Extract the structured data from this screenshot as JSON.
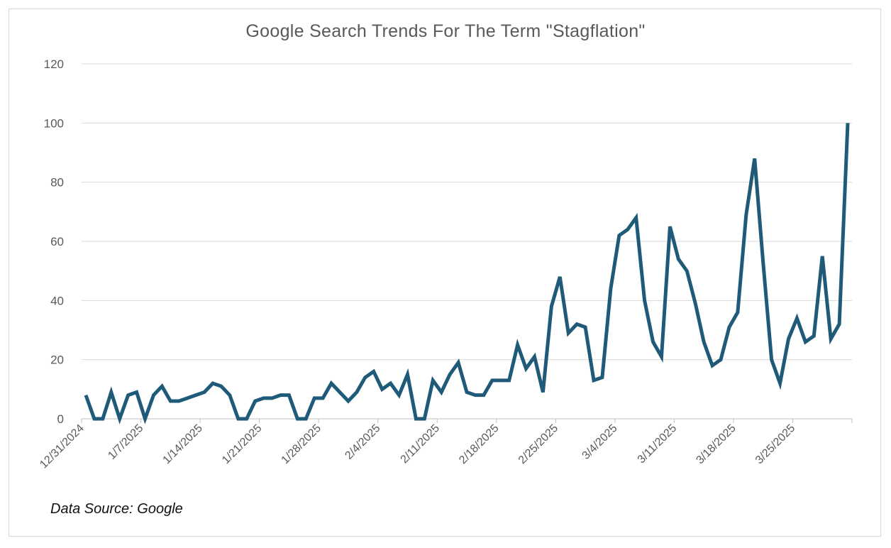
{
  "chart_data": {
    "type": "line",
    "title": "Google Search Trends For The Term \"Stagflation\"",
    "source_note": "Data Source:  Google",
    "xlabel": "",
    "ylabel": "",
    "ylim": [
      0,
      120
    ],
    "yticks": [
      0,
      20,
      40,
      60,
      80,
      100,
      120
    ],
    "grid": true,
    "legend": "none",
    "line_color": "#1f5a78",
    "x_tick_labels": [
      "12/31/2024",
      "1/7/2025",
      "1/14/2025",
      "1/21/2025",
      "1/28/2025",
      "2/4/2025",
      "2/11/2025",
      "2/18/2025",
      "2/25/2025",
      "3/4/2025",
      "3/11/2025",
      "3/18/2025",
      "3/25/2025"
    ],
    "x_start": "12/31/2024",
    "x_end": "3/31/2025",
    "series": [
      {
        "values": [
          8,
          0,
          0,
          9,
          0,
          8,
          9,
          0,
          8,
          11,
          6,
          6,
          7,
          8,
          9,
          12,
          11,
          8,
          0,
          0,
          6,
          7,
          7,
          8,
          8,
          0,
          0,
          7,
          7,
          12,
          9,
          6,
          9,
          14,
          16,
          10,
          12,
          8,
          15,
          0,
          0,
          13,
          9,
          15,
          19,
          9,
          8,
          8,
          13,
          13,
          13,
          25,
          17,
          21,
          9,
          38,
          48,
          29,
          32,
          31,
          13,
          14,
          44,
          62,
          64,
          68,
          40,
          26,
          21,
          65,
          54,
          50,
          39,
          26,
          18,
          20,
          31,
          36,
          69,
          88,
          53,
          20,
          12,
          27,
          34,
          26,
          28,
          55,
          27,
          32,
          100
        ]
      }
    ]
  }
}
